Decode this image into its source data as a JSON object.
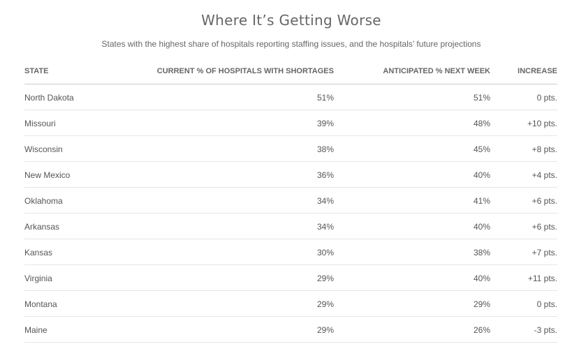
{
  "chart_data": {
    "type": "table",
    "title": "Where It’s Getting Worse",
    "subtitle": "States with the highest share of hospitals reporting staffing issues, and the hospitals’ future projections",
    "columns": [
      "STATE",
      "CURRENT % OF HOSPITALS WITH SHORTAGES",
      "ANTICIPATED % NEXT WEEK",
      "INCREASE"
    ],
    "rows": [
      {
        "state": "North Dakota",
        "current": "51%",
        "next": "51%",
        "increase": "0 pts."
      },
      {
        "state": "Missouri",
        "current": "39%",
        "next": "48%",
        "increase": "+10 pts."
      },
      {
        "state": "Wisconsin",
        "current": "38%",
        "next": "45%",
        "increase": "+8 pts."
      },
      {
        "state": "New Mexico",
        "current": "36%",
        "next": "40%",
        "increase": "+4 pts."
      },
      {
        "state": "Oklahoma",
        "current": "34%",
        "next": "41%",
        "increase": "+6 pts."
      },
      {
        "state": "Arkansas",
        "current": "34%",
        "next": "40%",
        "increase": "+6 pts."
      },
      {
        "state": "Kansas",
        "current": "30%",
        "next": "38%",
        "increase": "+7 pts."
      },
      {
        "state": "Virginia",
        "current": "29%",
        "next": "40%",
        "increase": "+11 pts."
      },
      {
        "state": "Montana",
        "current": "29%",
        "next": "29%",
        "increase": "0 pts."
      },
      {
        "state": "Maine",
        "current": "29%",
        "next": "26%",
        "increase": "-3 pts."
      }
    ]
  }
}
